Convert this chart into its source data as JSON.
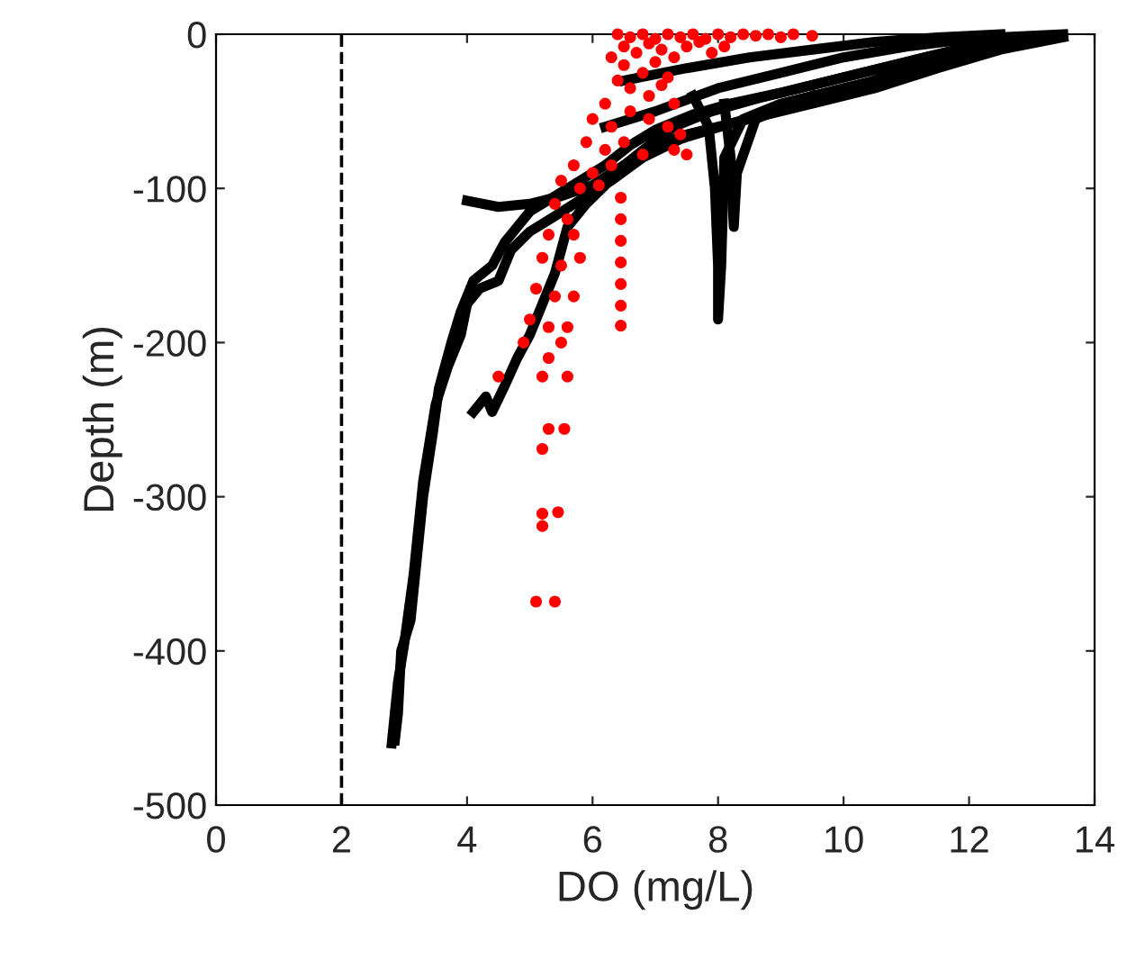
{
  "chart_data": {
    "type": "scatter",
    "xlabel": "DO (mg/L)",
    "ylabel": "Depth (m)",
    "xlim": [
      0,
      14
    ],
    "xticks": [
      0,
      2,
      4,
      6,
      8,
      10,
      12,
      14
    ],
    "ylim": [
      -500,
      0
    ],
    "yticks": [
      -500,
      -400,
      -300,
      -200,
      -100,
      0
    ],
    "grid": false,
    "legend": false,
    "ref_lines": [
      {
        "axis": "x",
        "value": 2,
        "color": "#000000",
        "line_style": "dashed"
      }
    ],
    "series": [
      {
        "type": "line",
        "color": "#000000",
        "line_style": "solid",
        "x": [
          2.85,
          2.9,
          2.95,
          3.1,
          3.2,
          3.3,
          3.45,
          3.55,
          3.75,
          3.9,
          4.1,
          4.4,
          4.6,
          4.8,
          5.0,
          5.4,
          5.8,
          6.2,
          6.6,
          7.0,
          7.6,
          8.2,
          9.0,
          9.8,
          10.6,
          11.4,
          12.2,
          12.8
        ],
        "values": [
          -458,
          -440,
          -400,
          -380,
          -340,
          -300,
          -260,
          -230,
          -200,
          -180,
          -160,
          -150,
          -135,
          -125,
          -115,
          -105,
          -95,
          -85,
          -72,
          -62,
          -52,
          -45,
          -38,
          -30,
          -22,
          -14,
          -7,
          -3
        ]
      },
      {
        "type": "line",
        "color": "#000000",
        "line_style": "solid",
        "x": [
          2.8,
          2.9,
          3.0,
          3.15,
          3.3,
          3.5,
          3.7,
          3.9,
          4.0,
          4.2,
          4.5,
          4.7,
          5.0,
          5.4,
          5.9,
          6.3,
          6.8,
          7.4,
          8.2,
          9.2,
          10.2,
          11.2,
          12.2
        ],
        "values": [
          -460,
          -420,
          -395,
          -350,
          -290,
          -240,
          -215,
          -195,
          -175,
          -165,
          -160,
          -140,
          -128,
          -118,
          -105,
          -95,
          -80,
          -68,
          -58,
          -46,
          -34,
          -20,
          -8
        ]
      },
      {
        "type": "line",
        "color": "#000000",
        "line_style": "solid",
        "x": [
          4.0,
          4.5,
          5.0,
          5.5,
          6.0,
          6.5,
          7.0,
          7.5,
          8.5,
          9.5,
          10.5,
          11.5,
          12.5,
          13.5
        ],
        "values": [
          -108,
          -112,
          -110,
          -105,
          -98,
          -85,
          -72,
          -65,
          -55,
          -45,
          -35,
          -22,
          -10,
          -2
        ]
      },
      {
        "type": "line",
        "color": "#000000",
        "line_style": "solid",
        "x": [
          4.1,
          4.3,
          4.4,
          4.6,
          4.8,
          5.0,
          5.2,
          5.4,
          5.5,
          5.6,
          5.9,
          6.2,
          6.5,
          6.9,
          7.3,
          7.9,
          8.6,
          9.4,
          10.2,
          11.0,
          11.8,
          12.6
        ],
        "values": [
          -245,
          -235,
          -245,
          -228,
          -210,
          -195,
          -175,
          -155,
          -140,
          -125,
          -110,
          -98,
          -85,
          -72,
          -60,
          -50,
          -42,
          -34,
          -26,
          -18,
          -10,
          -4
        ]
      },
      {
        "type": "line",
        "color": "#000000",
        "line_style": "solid",
        "x": [
          7.6,
          7.85,
          7.95,
          8.0,
          8.0,
          8.05,
          8.1,
          8.4,
          9.0,
          10.0,
          11.0,
          12.0,
          13.0
        ],
        "values": [
          -40,
          -60,
          -100,
          -150,
          -185,
          -150,
          -80,
          -55,
          -45,
          -35,
          -25,
          -12,
          -3
        ]
      },
      {
        "type": "line",
        "color": "#000000",
        "line_style": "solid",
        "x": [
          8.1,
          8.2,
          8.25,
          8.3,
          8.6,
          9.5
        ],
        "values": [
          -45,
          -80,
          -125,
          -90,
          -55,
          -40
        ]
      },
      {
        "type": "line",
        "color": "#000000",
        "line_style": "solid",
        "x": [
          6.2,
          7.0,
          8.0,
          9.0,
          10.0,
          11.0,
          12.0,
          13.5
        ],
        "values": [
          -60,
          -50,
          -35,
          -25,
          -15,
          -8,
          -3,
          0
        ]
      },
      {
        "type": "line",
        "color": "#000000",
        "line_style": "solid",
        "x": [
          6.5,
          7.5,
          8.5,
          9.5,
          10.5,
          11.5,
          12.5
        ],
        "values": [
          -30,
          -22,
          -15,
          -10,
          -5,
          -2,
          0
        ]
      },
      {
        "color": "#ff0000",
        "marker": "circle",
        "x": [
          6.4,
          6.6,
          6.8,
          7.0,
          7.2,
          7.4,
          7.6,
          7.8,
          8.0,
          8.2,
          8.4,
          8.6,
          8.8,
          9.0,
          9.2,
          9.5,
          6.5,
          6.7,
          6.9,
          7.1,
          7.3,
          7.5,
          7.7,
          7.9,
          8.1,
          6.3,
          6.5,
          6.8,
          7.0,
          7.2,
          6.4,
          6.6,
          6.9,
          7.1,
          7.3,
          6.2,
          6.0,
          6.3,
          6.6,
          6.9,
          7.2,
          7.4,
          5.9,
          6.2,
          6.5,
          6.8,
          5.7,
          6.0,
          6.3,
          5.5,
          5.8,
          6.1,
          7.3,
          7.5,
          6.45,
          6.45,
          6.45,
          6.45,
          6.45,
          6.45,
          6.45,
          5.4,
          5.6,
          5.3,
          5.7,
          5.2,
          5.5,
          5.8,
          5.1,
          5.4,
          5.7,
          5.0,
          5.3,
          5.6,
          4.9,
          5.5,
          5.3,
          4.5,
          5.2,
          5.6,
          5.3,
          5.55,
          5.2,
          5.2,
          5.45,
          5.2,
          5.1,
          5.4
        ],
        "values": [
          0,
          -2,
          0,
          -3,
          0,
          -2,
          0,
          -3,
          0,
          -2,
          0,
          -1,
          0,
          -2,
          0,
          -1,
          -8,
          -12,
          -6,
          -10,
          -15,
          -8,
          -5,
          -12,
          -8,
          -15,
          -20,
          -25,
          -18,
          -28,
          -30,
          -35,
          -40,
          -33,
          -45,
          -45,
          -55,
          -60,
          -50,
          -55,
          -60,
          -65,
          -70,
          -75,
          -70,
          -78,
          -85,
          -90,
          -85,
          -95,
          -100,
          -98,
          -75,
          -78,
          -106,
          -120,
          -134,
          -148,
          -162,
          -176,
          -189,
          -110,
          -120,
          -130,
          -130,
          -145,
          -150,
          -145,
          -165,
          -170,
          -170,
          -185,
          -190,
          -190,
          -200,
          -200,
          -210,
          -222,
          -222,
          -222,
          -256,
          -256,
          -269,
          -311,
          -310,
          -319,
          -368,
          -368
        ]
      }
    ]
  }
}
